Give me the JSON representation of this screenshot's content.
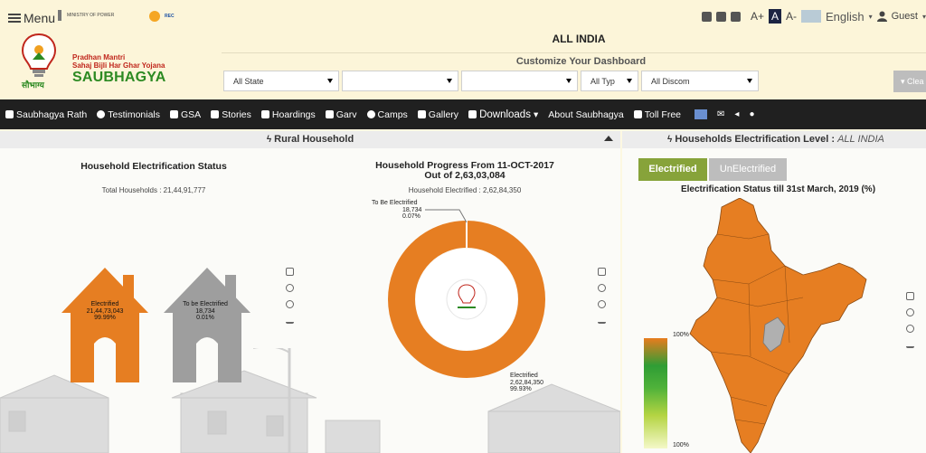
{
  "header": {
    "menu_label": "Menu",
    "ministry_text": "MINISTRY OF POWER",
    "rec_text": "REC",
    "yojana_line1": "Pradhan Mantri",
    "yojana_line2": "Sahaj Bijli Har Ghar Yojana",
    "brand": "SAUBHAGYA",
    "brand_hindi": "सौभाग्य",
    "font_plus": "A+",
    "font_normal": "A",
    "font_minus": "A-",
    "language": "English",
    "user": "Guest",
    "region_title": "ALL INDIA",
    "customize_title": "Customize Your Dashboard",
    "filters": {
      "state": "All State",
      "district": "",
      "sub": "",
      "type": "All Typ",
      "discom": "All Discom"
    },
    "clear_label": "Clea"
  },
  "nav": {
    "items": [
      "Saubhagya Rath",
      "Testimonials",
      "GSA",
      "Stories",
      "Hoardings",
      "Garv",
      "Camps",
      "Gallery",
      "Downloads",
      "About Saubhagya",
      "Toll Free"
    ]
  },
  "left_panel": {
    "title": "Rural Household",
    "status": {
      "title": "Household Electrification Status",
      "total": "Total  Households : 21,44,91,777",
      "electrified_label": "Electrified",
      "electrified_count": "21,44,73,043",
      "electrified_pct": "99.99%",
      "tobe_label": "To be Electrified",
      "tobe_count": "18,734",
      "tobe_pct": "0.01%"
    },
    "progress": {
      "title_line1": "Household Progress From 11-OCT-2017",
      "title_line2": "Out of 2,63,03,084",
      "subtitle": "Household Electrified : 2,62,84,350",
      "tobe_label": "To Be Electrified",
      "tobe_count": "18,734",
      "tobe_pct": "0.07%",
      "elec_label": "Electrified",
      "elec_count": "2,62,84,350",
      "elec_pct": "99.93%"
    }
  },
  "right_panel": {
    "title": "Households Electrification Level : ",
    "title_region": "ALL INDIA",
    "tab_electrified": "Electrified",
    "tab_unelectrified": "UnElectrified",
    "map_title": "Electrification Status till 31st March, 2019 (%)",
    "legend_top": "100%",
    "legend_bottom": "100%"
  },
  "colors": {
    "accent_orange": "#e67e22",
    "grey_house": "#9e9e9e",
    "nav_bg": "#202020",
    "green_button": "#87a33a"
  }
}
